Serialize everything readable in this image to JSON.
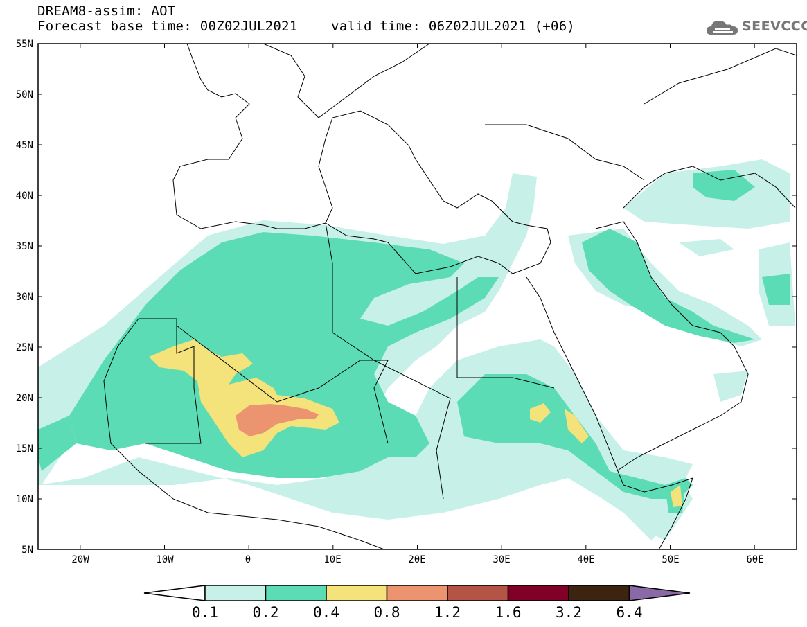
{
  "header": {
    "line1": "DREAM8-assim: AOT",
    "line2": "Forecast base time: 00Z02JUL2021",
    "valid": "valid time: 06Z02JUL2021 (+06)"
  },
  "logo": {
    "text": "SEEVCCC",
    "icon": "cloud-icon"
  },
  "map": {
    "lat_labels": [
      "55N",
      "50N",
      "45N",
      "40N",
      "35N",
      "30N",
      "25N",
      "20N",
      "15N",
      "10N",
      "5N"
    ],
    "lon_labels": [
      "20W",
      "10W",
      "0",
      "10E",
      "20E",
      "30E",
      "40E",
      "50E",
      "60E"
    ],
    "extent": {
      "lon": [
        -25,
        65
      ],
      "lat": [
        5,
        55
      ]
    },
    "colors": {
      "land_lines": "#000000",
      "background": "#ffffff"
    }
  },
  "colorbar": {
    "levels": [
      "0.1",
      "0.2",
      "0.4",
      "0.8",
      "1.2",
      "1.6",
      "3.2",
      "6.4"
    ],
    "colors": [
      "#c6f0e8",
      "#5cdcb4",
      "#f4e27a",
      "#ec9470",
      "#b45446",
      "#800028",
      "#3c2410",
      "#8a6aa6"
    ]
  }
}
